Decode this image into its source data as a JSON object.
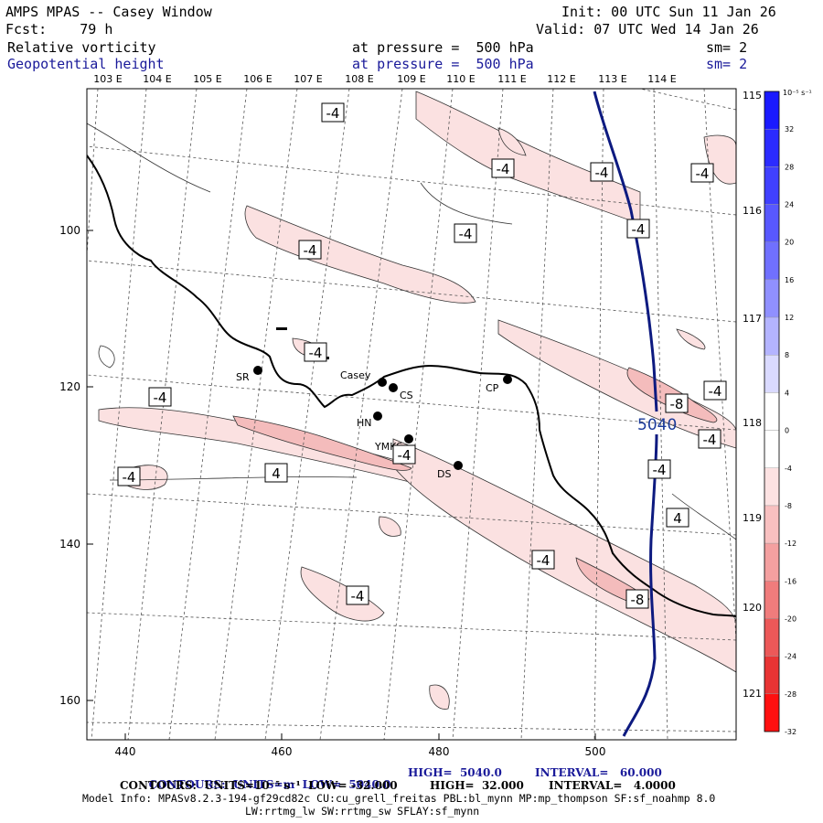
{
  "header": {
    "title": "AMPS MPAS -- Casey Window",
    "fcst": "Fcst:    79 h",
    "init": "Init: 00 UTC Sun 11 Jan 26",
    "valid": "Valid: 07 UTC Wed 14 Jan 26",
    "field1_name": "Relative vorticity",
    "field1_pressure": "at pressure =  500 hPa",
    "field1_sm": "sm= 2",
    "field2_name": "Geopotential height",
    "field2_pressure": "at pressure =  500 hPa",
    "field2_sm": "sm= 2"
  },
  "map": {
    "lon_top": [
      "103 E",
      "104 E",
      "105 E",
      "106 E",
      "107 E",
      "108 E",
      "109 E",
      "110 E",
      "111 E",
      "112 E",
      "113 E",
      "114 E"
    ],
    "lon_right": [
      "115 E",
      "116 E",
      "117 E",
      "118 E",
      "119 E",
      "120 E",
      "121 E"
    ],
    "y_ticks": [
      "100",
      "120",
      "140",
      "160"
    ],
    "x_ticks": [
      "440",
      "460",
      "480",
      "500"
    ],
    "stations": [
      {
        "name": "SR"
      },
      {
        "name": "Casey"
      },
      {
        "name": "CS"
      },
      {
        "name": "HN"
      },
      {
        "name": "YMKS"
      },
      {
        "name": "DS"
      },
      {
        "name": "CP"
      }
    ],
    "contour_labels": [
      "-4",
      "-4",
      "-4",
      "-4",
      "-4",
      "-4",
      "-4",
      "-4",
      "-4",
      "-4",
      "-4",
      "-4",
      "-4",
      "-4",
      "-4",
      "4",
      "4",
      "-8",
      "-8",
      "-4"
    ],
    "height_label": "5040",
    "colors": {
      "height_contour": "#0d1a80",
      "vort_light": "#fbe1e1",
      "vort_mid": "#f4bcbc",
      "coast": "#000000",
      "grid": "#555555"
    }
  },
  "colorbar": {
    "unit": "10⁻⁵ s⁻¹",
    "labels": [
      "32",
      "28",
      "24",
      "20",
      "16",
      "12",
      "8",
      "4",
      "0",
      "-4",
      "-8",
      "-12",
      "-16",
      "-20",
      "-24",
      "-28",
      "-32"
    ],
    "colors": [
      "#1a1aff",
      "#2b2bff",
      "#4040ff",
      "#5858ff",
      "#7070ff",
      "#9090ff",
      "#b4b4ff",
      "#dadaff",
      "#ffffff",
      "#ffffff",
      "#fde2e2",
      "#f8c0c0",
      "#f4a0a0",
      "#f07c7c",
      "#ec5858",
      "#e83434",
      "#ff1010"
    ]
  },
  "footer": {
    "line1_a": "CONTOURS:  UNITS=m  LOW=  5040.0",
    "line1_b": "HIGH=  5040.0",
    "line1_c": "INTERVAL=   60.000",
    "line2_a": "CONTOURS:  UNITS=10⁻⁵ s⁻¹  LOW= -32.000",
    "line2_b": "HIGH=  32.000",
    "line2_c": "INTERVAL=   4.0000",
    "model_info": "Model Info: MPASv8.2.3-194-gf29cd82c CU:cu_grell_freitas PBL:bl_mynn MP:mp_thompson SF:sf_noahmp 8.0",
    "model_info2": "LW:rrtmg_lw SW:rrtmg_sw SFLAY:sf_mynn"
  }
}
